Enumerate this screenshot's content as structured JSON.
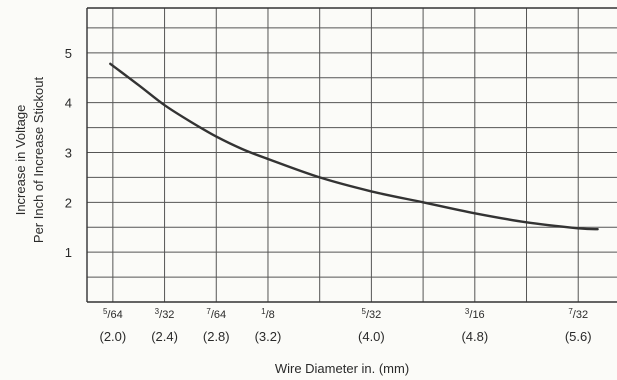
{
  "chart_data": {
    "type": "line",
    "title": "",
    "xlabel": "Wire Diameter in. (mm)",
    "ylabel_lines": [
      "Increase in Voltage",
      "Per Inch of Increase Stickout"
    ],
    "x_unit": "mm",
    "xlim": [
      1.8,
      5.9
    ],
    "ylim": [
      0,
      5.9
    ],
    "grid": true,
    "y_ticks": [
      1,
      2,
      3,
      4,
      5
    ],
    "x_ticks": [
      {
        "num": "5",
        "den": "64",
        "mm": "(2.0)",
        "value": 2.0
      },
      {
        "num": "3",
        "den": "32",
        "mm": "(2.4)",
        "value": 2.4
      },
      {
        "num": "7",
        "den": "64",
        "mm": "(2.8)",
        "value": 2.8
      },
      {
        "num": "1",
        "den": "8",
        "mm": "(3.2)",
        "value": 3.2
      },
      {
        "num": "5",
        "den": "32",
        "mm": "(4.0)",
        "value": 4.0
      },
      {
        "num": "3",
        "den": "16",
        "mm": "(4.8)",
        "value": 4.8
      },
      {
        "num": "7",
        "den": "32",
        "mm": "(5.6)",
        "value": 5.6
      }
    ],
    "series": [
      {
        "x": [
          1.98,
          2.2,
          2.4,
          2.6,
          2.8,
          3.0,
          3.2,
          3.6,
          4.0,
          4.4,
          4.8,
          5.2,
          5.6,
          5.75
        ],
        "y": [
          4.78,
          4.35,
          3.95,
          3.62,
          3.32,
          3.07,
          2.87,
          2.5,
          2.22,
          2.0,
          1.78,
          1.6,
          1.48,
          1.46
        ]
      }
    ],
    "colors": {
      "line": "#333333",
      "grid": "#555555",
      "frame": "#333333"
    }
  }
}
